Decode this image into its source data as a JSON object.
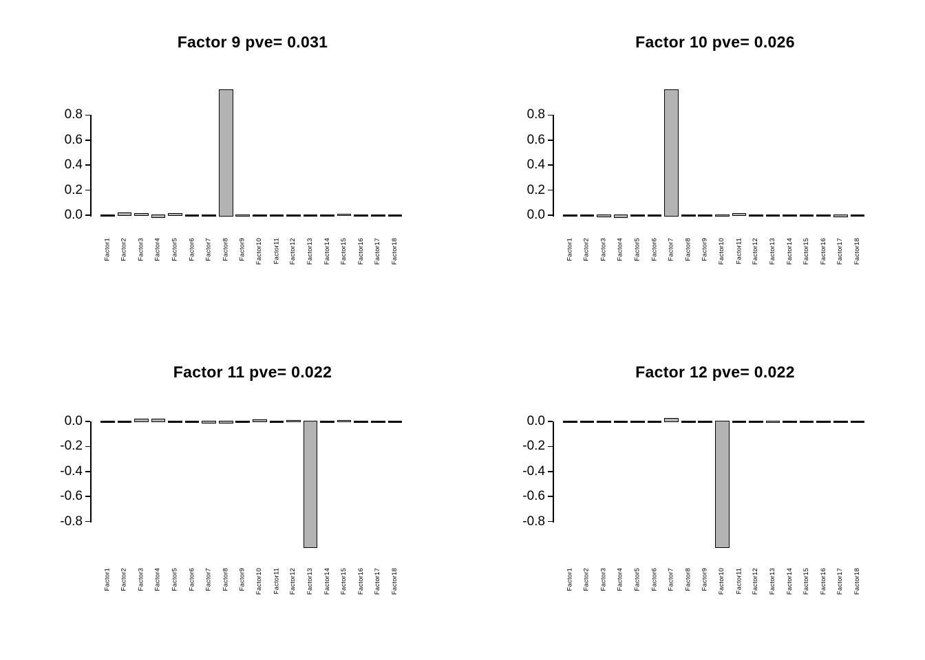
{
  "page": {
    "background": "#ffffff",
    "description": "2x2 grid of R-style factor loading barplots"
  },
  "chart_data": [
    {
      "type": "bar",
      "title": "Factor 9 pve= 0.031",
      "categories": [
        "Factor1",
        "Factor2",
        "Factor3",
        "Factor4",
        "Factor5",
        "Factor6",
        "Factor7",
        "Factor8",
        "Factor9",
        "Factor10",
        "Factor11",
        "Factor12",
        "Factor13",
        "Factor14",
        "Factor15",
        "Factor16",
        "Factor17",
        "Factor18"
      ],
      "values": [
        0,
        0.012,
        0.009,
        -0.014,
        0.007,
        0,
        0,
        1.0,
        -0.005,
        0,
        0,
        0,
        0,
        0,
        0.005,
        0,
        0,
        0
      ],
      "yticks": [
        0,
        0.2,
        0.4,
        0.6,
        0.8
      ],
      "ytick_labels": [
        "0.0",
        "0.2",
        "0.4",
        "0.6",
        "0.8"
      ],
      "ylim": [
        -0.04,
        1.04
      ],
      "xlabel": "",
      "ylabel": "",
      "grid": "off",
      "legend": "none",
      "bar_color": "#b3b3b3",
      "bar_border_color": "#000000"
    },
    {
      "type": "bar",
      "title": "Factor 10 pve= 0.026",
      "categories": [
        "Factor1",
        "Factor2",
        "Factor3",
        "Factor4",
        "Factor5",
        "Factor6",
        "Factor7",
        "Factor8",
        "Factor9",
        "Factor10",
        "Factor11",
        "Factor12",
        "Factor13",
        "Factor14",
        "Factor15",
        "Factor16",
        "Factor17",
        "Factor18"
      ],
      "values": [
        0,
        0,
        -0.01,
        -0.013,
        0,
        0,
        1.0,
        0,
        0,
        -0.005,
        0.008,
        0,
        0,
        0,
        0,
        0,
        -0.01,
        0
      ],
      "yticks": [
        0,
        0.2,
        0.4,
        0.6,
        0.8
      ],
      "ytick_labels": [
        "0.0",
        "0.2",
        "0.4",
        "0.6",
        "0.8"
      ],
      "ylim": [
        -0.04,
        1.04
      ],
      "xlabel": "",
      "ylabel": "",
      "grid": "off",
      "legend": "none",
      "bar_color": "#b3b3b3",
      "bar_border_color": "#000000"
    },
    {
      "type": "bar",
      "title": "Factor 11 pve= 0.022",
      "categories": [
        "Factor1",
        "Factor2",
        "Factor3",
        "Factor4",
        "Factor5",
        "Factor6",
        "Factor7",
        "Factor8",
        "Factor9",
        "Factor10",
        "Factor11",
        "Factor12",
        "Factor13",
        "Factor14",
        "Factor15",
        "Factor16",
        "Factor17",
        "Factor18"
      ],
      "values": [
        0,
        0,
        0.015,
        0.016,
        0,
        0,
        -0.01,
        -0.006,
        0,
        0.007,
        0,
        0.004,
        -1.0,
        0,
        0.004,
        0,
        0,
        0
      ],
      "yticks": [
        0,
        -0.2,
        -0.4,
        -0.6,
        -0.8
      ],
      "ytick_labels": [
        "0.0",
        "-0.2",
        "-0.4",
        "-0.6",
        "-0.8"
      ],
      "ylim": [
        -1.04,
        0.04
      ],
      "xlabel": "",
      "ylabel": "",
      "grid": "off",
      "legend": "none",
      "bar_color": "#b3b3b3",
      "bar_border_color": "#000000"
    },
    {
      "type": "bar",
      "title": "Factor 12 pve= 0.022",
      "categories": [
        "Factor1",
        "Factor2",
        "Factor3",
        "Factor4",
        "Factor5",
        "Factor6",
        "Factor7",
        "Factor8",
        "Factor9",
        "Factor10",
        "Factor11",
        "Factor12",
        "Factor13",
        "Factor14",
        "Factor15",
        "Factor16",
        "Factor17",
        "Factor18"
      ],
      "values": [
        0,
        0,
        0,
        0,
        0,
        0,
        0.02,
        0,
        0,
        -1.0,
        0,
        0,
        -0.005,
        0,
        0,
        0,
        0,
        0
      ],
      "yticks": [
        0,
        -0.2,
        -0.4,
        -0.6,
        -0.8
      ],
      "ytick_labels": [
        "0.0",
        "-0.2",
        "-0.4",
        "-0.6",
        "-0.8"
      ],
      "ylim": [
        -1.04,
        0.04
      ],
      "xlabel": "",
      "ylabel": "",
      "grid": "off",
      "legend": "none",
      "bar_color": "#b3b3b3",
      "bar_border_color": "#000000"
    }
  ]
}
